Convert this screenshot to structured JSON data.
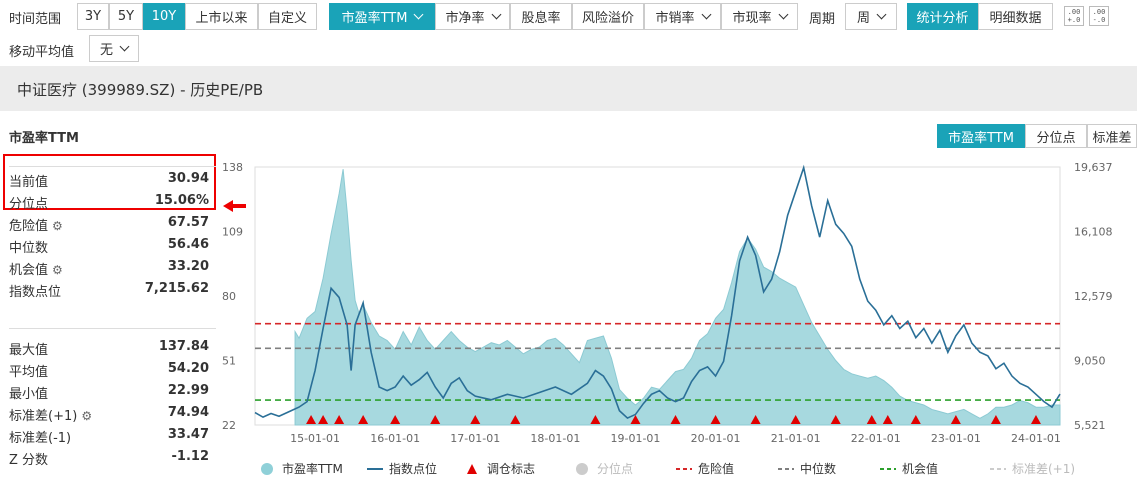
{
  "toolbar": {
    "range_label": "时间范围",
    "range_buttons": [
      "3Y",
      "5Y",
      "10Y",
      "上市以来",
      "自定义"
    ],
    "range_active": "10Y",
    "metric_buttons": [
      "市盈率TTM",
      "市净率",
      "股息率",
      "风险溢价",
      "市销率",
      "市现率"
    ],
    "metric_active": "市盈率TTM",
    "period_label": "周期",
    "period_value": "周",
    "view_buttons": [
      "统计分析",
      "明细数据"
    ],
    "view_active": "统计分析",
    "ma_label": "移动平均值",
    "ma_value": "无",
    "decimal_icons": [
      ".00 +.0",
      ".00 -.0"
    ]
  },
  "page_title": "中证医疗 (399989.SZ) - 历史PE/PB",
  "section_title": "市盈率TTM",
  "stats_top": [
    {
      "label": "当前值",
      "value": "30.94"
    },
    {
      "label": "分位点",
      "value": "15.06%"
    }
  ],
  "stats_mid": [
    {
      "label": "危险值",
      "value": "67.57",
      "gear": true
    },
    {
      "label": "中位数",
      "value": "56.46",
      "gear": false
    },
    {
      "label": "机会值",
      "value": "33.20",
      "gear": true
    },
    {
      "label": "指数点位",
      "value": "7,215.62",
      "gear": false
    }
  ],
  "stats_bottom": [
    {
      "label": "最大值",
      "value": "137.84",
      "gear": false
    },
    {
      "label": "平均值",
      "value": "54.20",
      "gear": false
    },
    {
      "label": "最小值",
      "value": "22.99",
      "gear": false
    },
    {
      "label": "标准差(+1)",
      "value": "74.94",
      "gear": true
    },
    {
      "label": "标准差(-1)",
      "value": "33.47",
      "gear": false
    },
    {
      "label": "Z 分数",
      "value": "-1.12",
      "gear": false
    }
  ],
  "chart_tabs": [
    "市盈率TTM",
    "分位点",
    "标准差"
  ],
  "chart_tab_active": "市盈率TTM",
  "colors": {
    "accent": "#1aa3b8",
    "pe_area": "#9dd5dc",
    "index_line": "#2a6f97",
    "danger": "#d62728",
    "median": "#7f7f7f",
    "opportunity": "#2ca02c",
    "marker": "#e00000",
    "highlight_box": "#e00000"
  },
  "chart_data": {
    "type": "area",
    "x_ticks": [
      "15-01-01",
      "16-01-01",
      "17-01-01",
      "18-01-01",
      "19-01-01",
      "20-01-01",
      "21-01-01",
      "22-01-01",
      "23-01-01",
      "24-01-01"
    ],
    "y_left_ticks": [
      "138",
      "109",
      "80",
      "51",
      "22"
    ],
    "y_right_ticks": [
      "19,637",
      "16,108",
      "12,579",
      "9,050",
      "5,521"
    ],
    "ylim_left": [
      22,
      138
    ],
    "ylim_right": [
      5521,
      19637
    ],
    "xlim": [
      2014.25,
      2024.3
    ],
    "reference_lines": [
      {
        "name": "危险值",
        "value": 67.57,
        "style": "dashed",
        "color": "#d62728"
      },
      {
        "name": "中位数",
        "value": 56.46,
        "style": "dashed",
        "color": "#7f7f7f"
      },
      {
        "name": "机会值",
        "value": 33.2,
        "style": "dashed",
        "color": "#2ca02c"
      }
    ],
    "series": [
      {
        "name": "市盈率TTM",
        "kind": "area",
        "axis": "left",
        "x": [
          2014.25,
          2014.5,
          2014.7,
          2014.75,
          2014.8,
          2014.9,
          2015.0,
          2015.1,
          2015.2,
          2015.3,
          2015.35,
          2015.4,
          2015.45,
          2015.5,
          2015.55,
          2015.6,
          2015.7,
          2015.8,
          2015.9,
          2016.0,
          2016.1,
          2016.2,
          2016.3,
          2016.4,
          2016.5,
          2016.6,
          2016.7,
          2016.8,
          2016.9,
          2017.0,
          2017.1,
          2017.2,
          2017.3,
          2017.4,
          2017.5,
          2017.6,
          2017.7,
          2017.8,
          2017.9,
          2018.0,
          2018.1,
          2018.2,
          2018.3,
          2018.4,
          2018.5,
          2018.6,
          2018.7,
          2018.8,
          2018.9,
          2019.0,
          2019.1,
          2019.2,
          2019.3,
          2019.4,
          2019.5,
          2019.6,
          2019.7,
          2019.8,
          2019.9,
          2020.0,
          2020.1,
          2020.2,
          2020.3,
          2020.4,
          2020.5,
          2020.6,
          2020.7,
          2020.8,
          2020.9,
          2021.0,
          2021.1,
          2021.2,
          2021.3,
          2021.4,
          2021.5,
          2021.6,
          2021.7,
          2021.8,
          2021.9,
          2022.0,
          2022.1,
          2022.2,
          2022.3,
          2022.4,
          2022.5,
          2022.6,
          2022.7,
          2022.8,
          2022.9,
          2023.0,
          2023.1,
          2023.2,
          2023.3,
          2023.4,
          2023.5,
          2023.6,
          2023.7,
          2023.8,
          2023.9,
          2024.0,
          2024.1,
          2024.2,
          2024.3
        ],
        "values": [
          null,
          null,
          null,
          64,
          61,
          70,
          73,
          88,
          108,
          126,
          137,
          118,
          96,
          78,
          72,
          76,
          68,
          62,
          60,
          56,
          64,
          58,
          66,
          60,
          56,
          60,
          64,
          60,
          57,
          55,
          57,
          59,
          58,
          60,
          57,
          54,
          56,
          57,
          60,
          61,
          58,
          54,
          50,
          60,
          61,
          62,
          52,
          38,
          34,
          31,
          34,
          39,
          38,
          42,
          46,
          47,
          52,
          60,
          63,
          70,
          74,
          86,
          100,
          106,
          101,
          93,
          91,
          88,
          86,
          84,
          76,
          68,
          62,
          56,
          51,
          47,
          45,
          44,
          43,
          44,
          42,
          39,
          35,
          33,
          32,
          31,
          29,
          28,
          27,
          28,
          29,
          27,
          25,
          27,
          30,
          30,
          31,
          33,
          32,
          30,
          30,
          31,
          31
        ]
      },
      {
        "name": "指数点位",
        "kind": "line",
        "axis": "right",
        "x": [
          2014.25,
          2014.35,
          2014.45,
          2014.55,
          2014.7,
          2014.8,
          2014.9,
          2015.0,
          2015.1,
          2015.2,
          2015.3,
          2015.4,
          2015.45,
          2015.5,
          2015.6,
          2015.7,
          2015.8,
          2015.9,
          2016.0,
          2016.1,
          2016.2,
          2016.3,
          2016.4,
          2016.5,
          2016.6,
          2016.7,
          2016.8,
          2016.9,
          2017.0,
          2017.2,
          2017.4,
          2017.6,
          2017.8,
          2018.0,
          2018.2,
          2018.4,
          2018.5,
          2018.6,
          2018.7,
          2018.8,
          2018.9,
          2019.0,
          2019.1,
          2019.2,
          2019.3,
          2019.4,
          2019.5,
          2019.6,
          2019.7,
          2019.8,
          2019.9,
          2020.0,
          2020.1,
          2020.2,
          2020.3,
          2020.4,
          2020.5,
          2020.6,
          2020.7,
          2020.8,
          2020.9,
          2021.0,
          2021.1,
          2021.2,
          2021.3,
          2021.4,
          2021.5,
          2021.6,
          2021.7,
          2021.8,
          2021.9,
          2022.0,
          2022.1,
          2022.2,
          2022.3,
          2022.4,
          2022.5,
          2022.6,
          2022.7,
          2022.8,
          2022.9,
          2023.0,
          2023.1,
          2023.2,
          2023.3,
          2023.4,
          2023.5,
          2023.6,
          2023.7,
          2023.8,
          2023.9,
          2024.0,
          2024.1,
          2024.2,
          2024.3
        ],
        "values": [
          6200,
          5950,
          6150,
          6000,
          6300,
          6500,
          6800,
          8500,
          10800,
          13000,
          12500,
          11000,
          8500,
          11000,
          12200,
          9500,
          7600,
          7400,
          7600,
          8200,
          7700,
          8000,
          8400,
          7600,
          7000,
          7800,
          8100,
          7400,
          7100,
          6900,
          7200,
          7000,
          7300,
          7600,
          7200,
          7800,
          8500,
          8200,
          7500,
          6300,
          5900,
          6100,
          6700,
          7200,
          7400,
          7000,
          6800,
          7000,
          7900,
          8500,
          8700,
          8200,
          9000,
          11500,
          14500,
          15800,
          14800,
          12800,
          13500,
          15000,
          17000,
          18300,
          19600,
          17500,
          15800,
          17800,
          16500,
          16000,
          15300,
          13500,
          12300,
          11800,
          11000,
          11500,
          10800,
          11200,
          10300,
          10800,
          10000,
          10700,
          9500,
          10400,
          11000,
          10000,
          9500,
          9300,
          8600,
          8900,
          8200,
          7800,
          7600,
          7200,
          6800,
          6500,
          7215
        ]
      }
    ],
    "markers_x": [
      2014.95,
      2015.1,
      2015.3,
      2015.6,
      2016.0,
      2016.5,
      2017.0,
      2017.5,
      2018.5,
      2019.0,
      2019.5,
      2020.0,
      2020.5,
      2021.0,
      2021.5,
      2021.95,
      2022.15,
      2022.5,
      2023.0,
      2023.5,
      2024.0
    ],
    "legend": [
      {
        "name": "市盈率TTM",
        "kind": "circle",
        "color": "#8fd0d8"
      },
      {
        "name": "指数点位",
        "kind": "line",
        "color": "#2a6f97"
      },
      {
        "name": "调仓标志",
        "kind": "triangle",
        "color": "#e00000"
      },
      {
        "name": "分位点",
        "kind": "circle",
        "color": "#cccccc",
        "muted": true
      },
      {
        "name": "危险值",
        "kind": "dash",
        "color": "#d62728"
      },
      {
        "name": "中位数",
        "kind": "dash",
        "color": "#7f7f7f"
      },
      {
        "name": "机会值",
        "kind": "dash",
        "color": "#2ca02c"
      },
      {
        "name": "标准差(+1)",
        "kind": "dash",
        "color": "#cccccc",
        "muted": true
      }
    ],
    "grid": false,
    "legend_position": "bottom"
  }
}
